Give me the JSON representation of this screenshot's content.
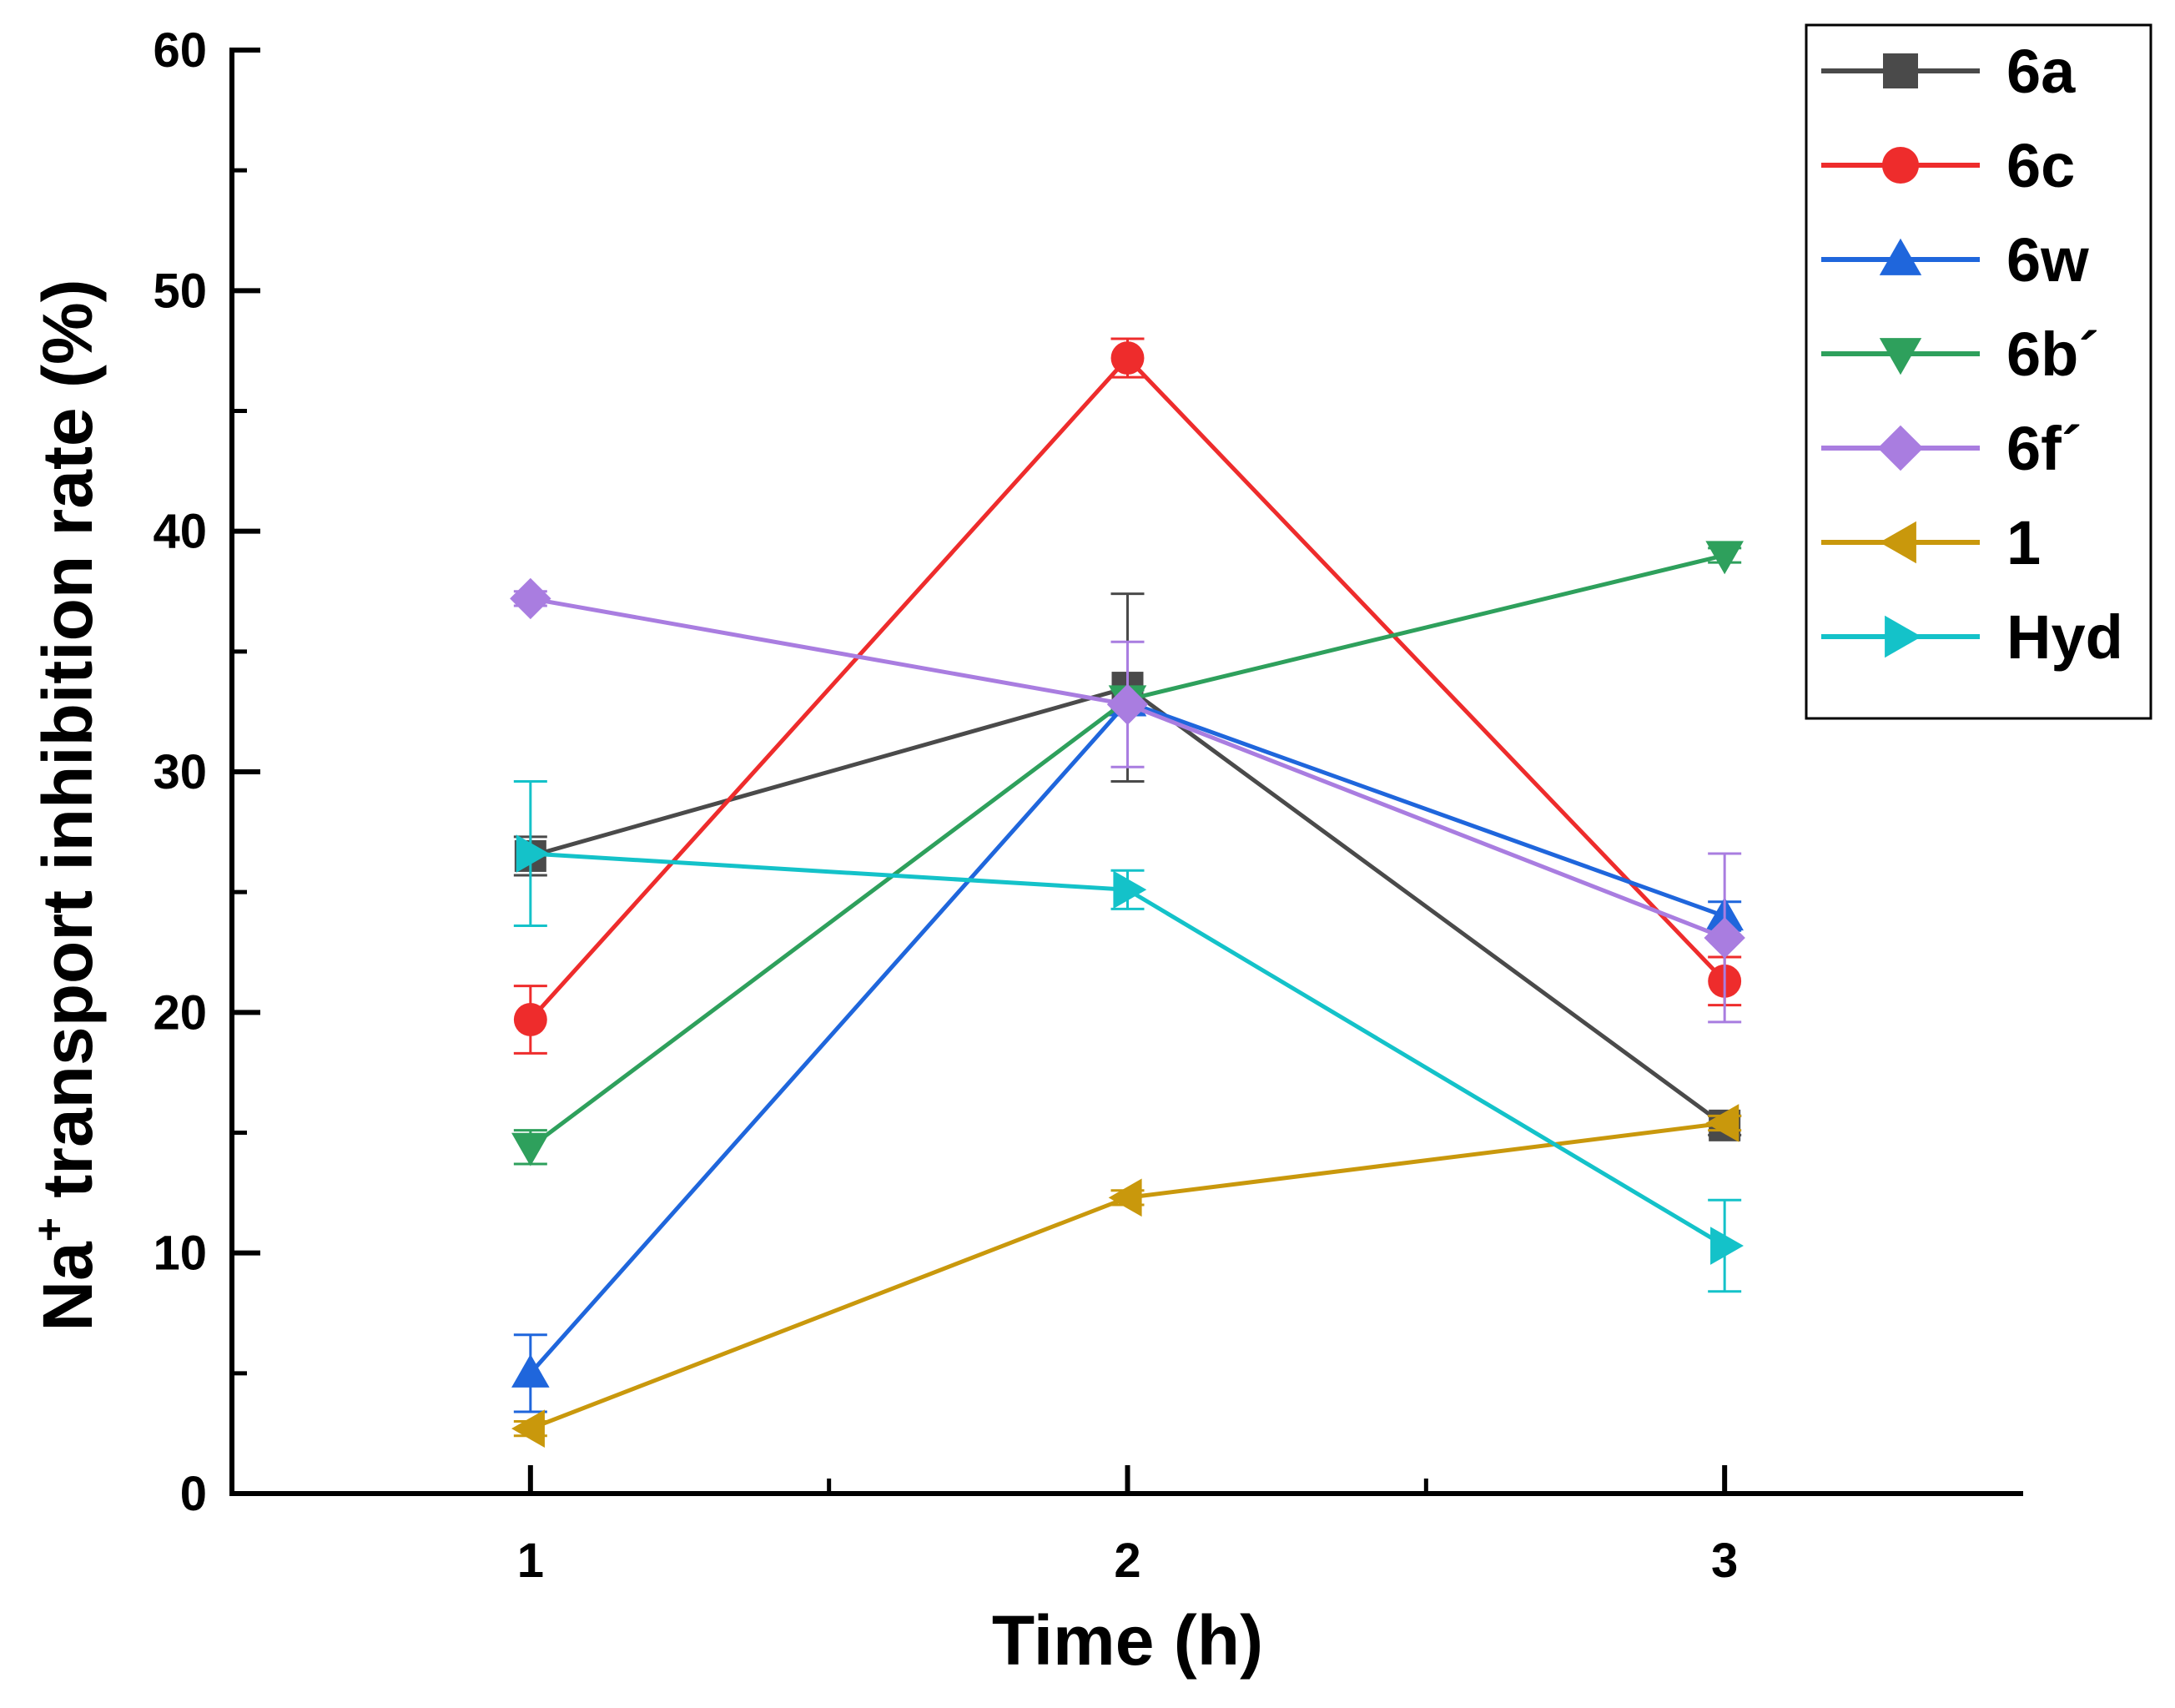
{
  "chart_data": {
    "type": "line",
    "xlabel": "Time (h)",
    "ylabel": {
      "prefix": "Na",
      "superscript": "+",
      "suffix": " transport inhibition rate (%)"
    },
    "xlim": [
      0.5,
      3.5
    ],
    "ylim": [
      0,
      60
    ],
    "x_ticks": [
      1,
      2,
      3
    ],
    "x_tick_labels": [
      "1",
      "2",
      "3"
    ],
    "y_ticks": [
      0,
      10,
      20,
      30,
      40,
      50,
      60
    ],
    "y_tick_labels": [
      "0",
      "10",
      "20",
      "30",
      "40",
      "50",
      "60"
    ],
    "legend_position": "top-right",
    "x": [
      1,
      2,
      3
    ],
    "series": [
      {
        "name": "6a",
        "color": "#4a4a4a",
        "marker": "square",
        "values": [
          26.5,
          33.5,
          15.3
        ],
        "errors": [
          0.8,
          3.9,
          0.4
        ]
      },
      {
        "name": "6c",
        "color": "#ee2c2c",
        "marker": "circle",
        "values": [
          19.7,
          47.2,
          21.3
        ],
        "errors": [
          1.4,
          0.8,
          1.0
        ]
      },
      {
        "name": "6w",
        "color": "#1f66dc",
        "marker": "triangle-up",
        "values": [
          5.0,
          32.9,
          24.0
        ],
        "errors": [
          1.6,
          0.5,
          0.6
        ]
      },
      {
        "name": "6b´",
        "color": "#2ea05c",
        "marker": "triangle-down",
        "values": [
          14.4,
          33.0,
          39.0
        ],
        "errors": [
          0.7,
          0.4,
          0.3
        ]
      },
      {
        "name": "6f´",
        "color": "#a97de0",
        "marker": "diamond",
        "values": [
          37.2,
          32.8,
          23.1
        ],
        "errors": [
          0.3,
          2.6,
          3.5
        ]
      },
      {
        "name": "1",
        "color": "#c9980c",
        "marker": "triangle-left",
        "values": [
          2.7,
          12.3,
          15.4
        ],
        "errors": [
          0.3,
          0.3,
          0.3
        ]
      },
      {
        "name": "Hyd",
        "color": "#14c2c9",
        "marker": "triangle-right",
        "values": [
          26.6,
          25.1,
          10.3
        ],
        "errors": [
          3.0,
          0.8,
          1.9
        ]
      }
    ]
  }
}
